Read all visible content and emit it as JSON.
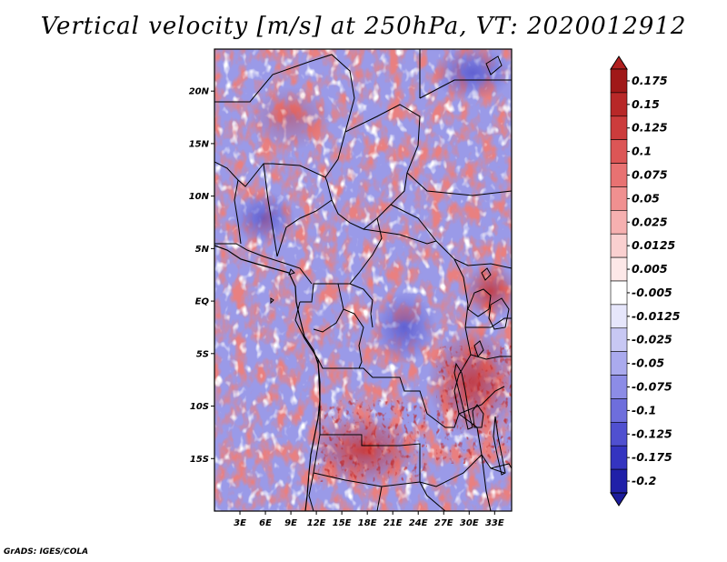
{
  "title": "Vertical velocity [m/s] at 250hPa, VT: 2020012912",
  "footer": "GrADS: IGES/COLA",
  "map": {
    "region": "Central Africa",
    "lon_range": [
      0,
      35
    ],
    "lat_range": [
      -20,
      24
    ],
    "lat_ticks": [
      {
        "value": 20,
        "label": "20N"
      },
      {
        "value": 15,
        "label": "15N"
      },
      {
        "value": 10,
        "label": "10N"
      },
      {
        "value": 5,
        "label": "5N"
      },
      {
        "value": 0,
        "label": "EQ"
      },
      {
        "value": -5,
        "label": "5S"
      },
      {
        "value": -10,
        "label": "10S"
      },
      {
        "value": -15,
        "label": "15S"
      }
    ],
    "lon_ticks": [
      {
        "value": 3,
        "label": "3E"
      },
      {
        "value": 6,
        "label": "6E"
      },
      {
        "value": 9,
        "label": "9E"
      },
      {
        "value": 12,
        "label": "12E"
      },
      {
        "value": 15,
        "label": "15E"
      },
      {
        "value": 18,
        "label": "18E"
      },
      {
        "value": 21,
        "label": "21E"
      },
      {
        "value": 24,
        "label": "24E"
      },
      {
        "value": 27,
        "label": "27E"
      },
      {
        "value": 30,
        "label": "30E"
      },
      {
        "value": 33,
        "label": "33E"
      }
    ]
  },
  "colorbar": {
    "levels": [
      {
        "label": "0.175",
        "color": "#a01818"
      },
      {
        "label": "0.15",
        "color": "#b82828"
      },
      {
        "label": "0.125",
        "color": "#cc3c3c"
      },
      {
        "label": "0.1",
        "color": "#dc5656"
      },
      {
        "label": "0.075",
        "color": "#e87272"
      },
      {
        "label": "0.05",
        "color": "#f09090"
      },
      {
        "label": "0.025",
        "color": "#f6b0b0"
      },
      {
        "label": "0.0125",
        "color": "#fad0d0"
      },
      {
        "label": "0.005",
        "color": "#fde8e8"
      },
      {
        "label": "-0.005",
        "color": "#ffffff"
      },
      {
        "label": "-0.0125",
        "color": "#e6e6fb"
      },
      {
        "label": "-0.025",
        "color": "#c8c8f4"
      },
      {
        "label": "-0.05",
        "color": "#aaaaee"
      },
      {
        "label": "-0.075",
        "color": "#8c8ce6"
      },
      {
        "label": "-0.1",
        "color": "#6e6edc"
      },
      {
        "label": "-0.125",
        "color": "#5050d0"
      },
      {
        "label": "-0.175",
        "color": "#3434c0"
      },
      {
        "label": "-0.2",
        "color": "#2020a8"
      }
    ],
    "top_color": "#b02020",
    "bottom_color": "#1c1c9c"
  }
}
